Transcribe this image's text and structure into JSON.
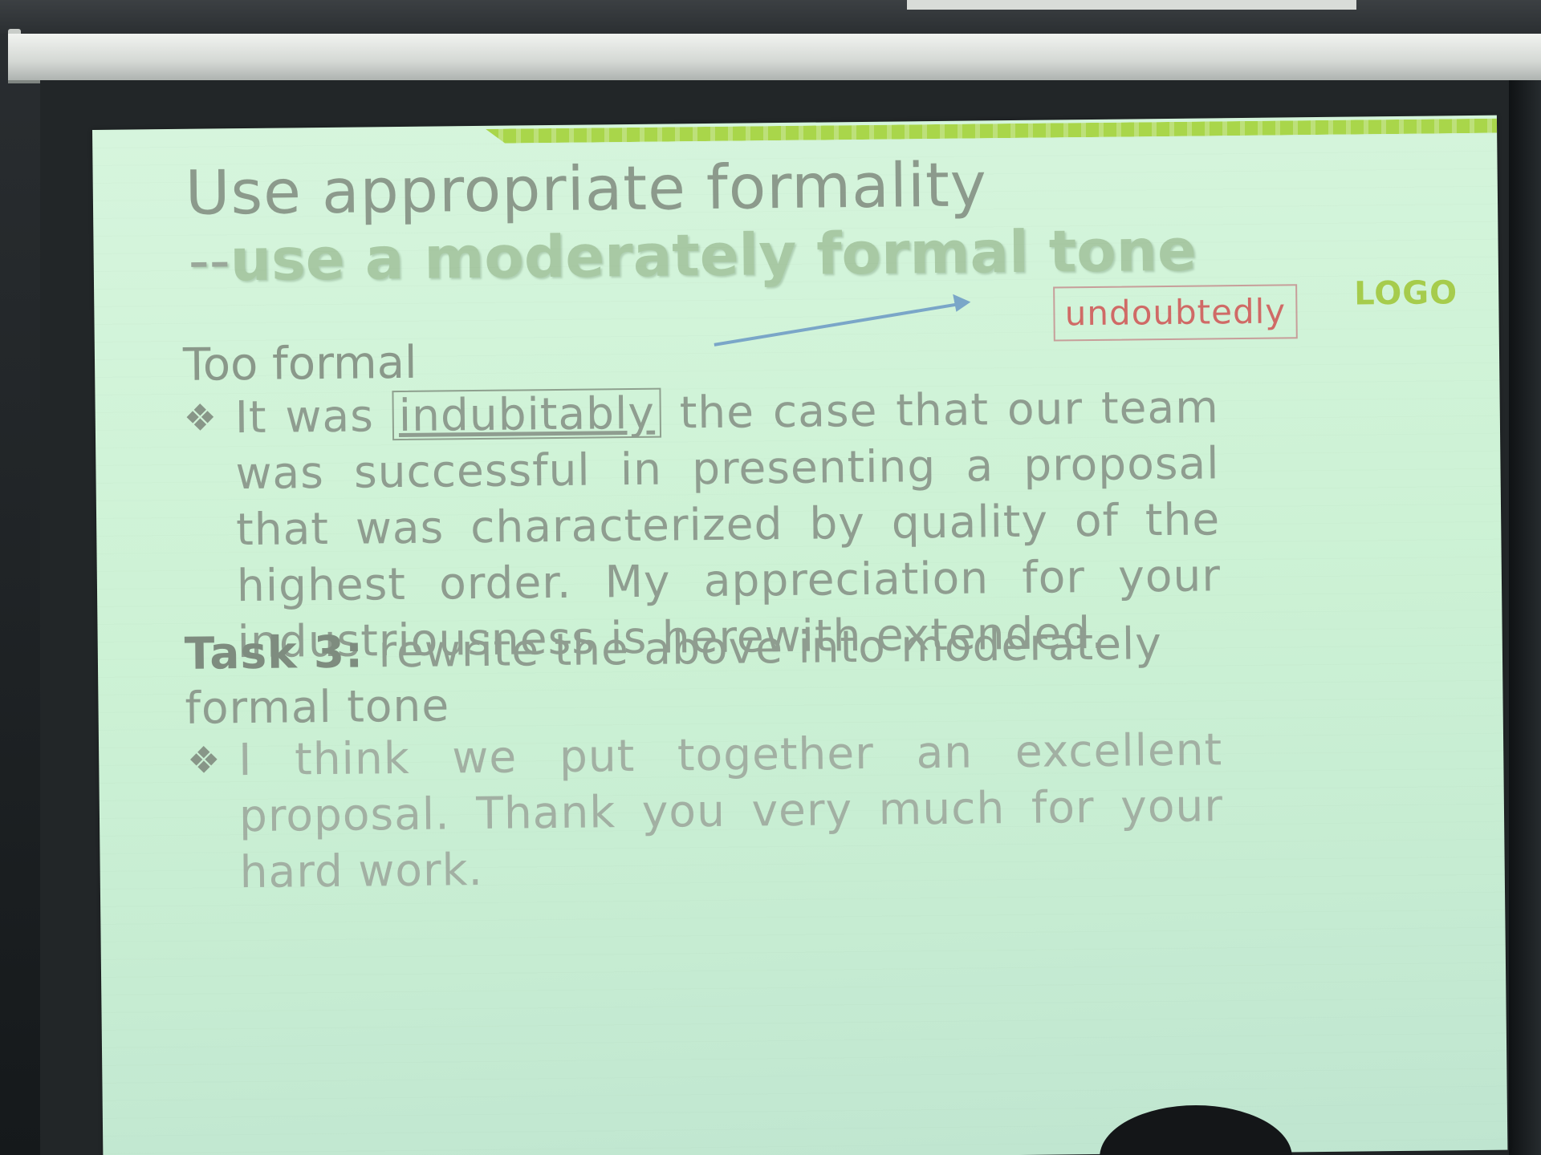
{
  "slide": {
    "title": "Use appropriate formality",
    "subtitle_prefix": "--",
    "subtitle_emphasis": "use a moderately formal tone",
    "logo": "LOGO",
    "replacement_word": "undoubtedly",
    "too_formal_label": "Too formal",
    "bullet_1": {
      "before": "It was ",
      "boxed_word": "indubitably",
      "after": " the case that our team was successful in presenting a proposal that was characterized by quality of the highest order. My appreciation for your industriousness is herewith extended."
    },
    "task": {
      "label": "Task 3:",
      "text": " rewrite the above into moderately formal tone"
    },
    "bullet_2": "I think we put together an excellent proposal. Thank you very much for your hard work.",
    "bullet_symbol": "❖"
  },
  "colors": {
    "slide_background": "#cdf2d5",
    "accent_green": "#a9d64a",
    "arrow_blue": "#7aa6c8",
    "replacement_red": "#d06a66"
  }
}
